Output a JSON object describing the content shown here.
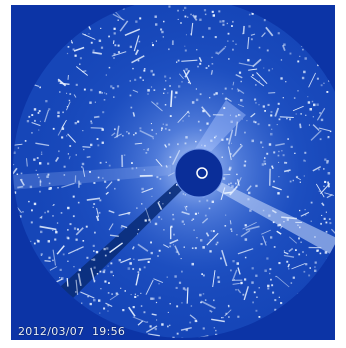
{
  "image": {
    "kind": "coronagraph",
    "colors": {
      "background": "#0c34a6",
      "field": "#1646b8",
      "occulter": "#0a2e99",
      "streak": "#e6f0ff",
      "timestamp": "#e9f1ff"
    },
    "timestamp": "2012/03/07  19:56"
  }
}
